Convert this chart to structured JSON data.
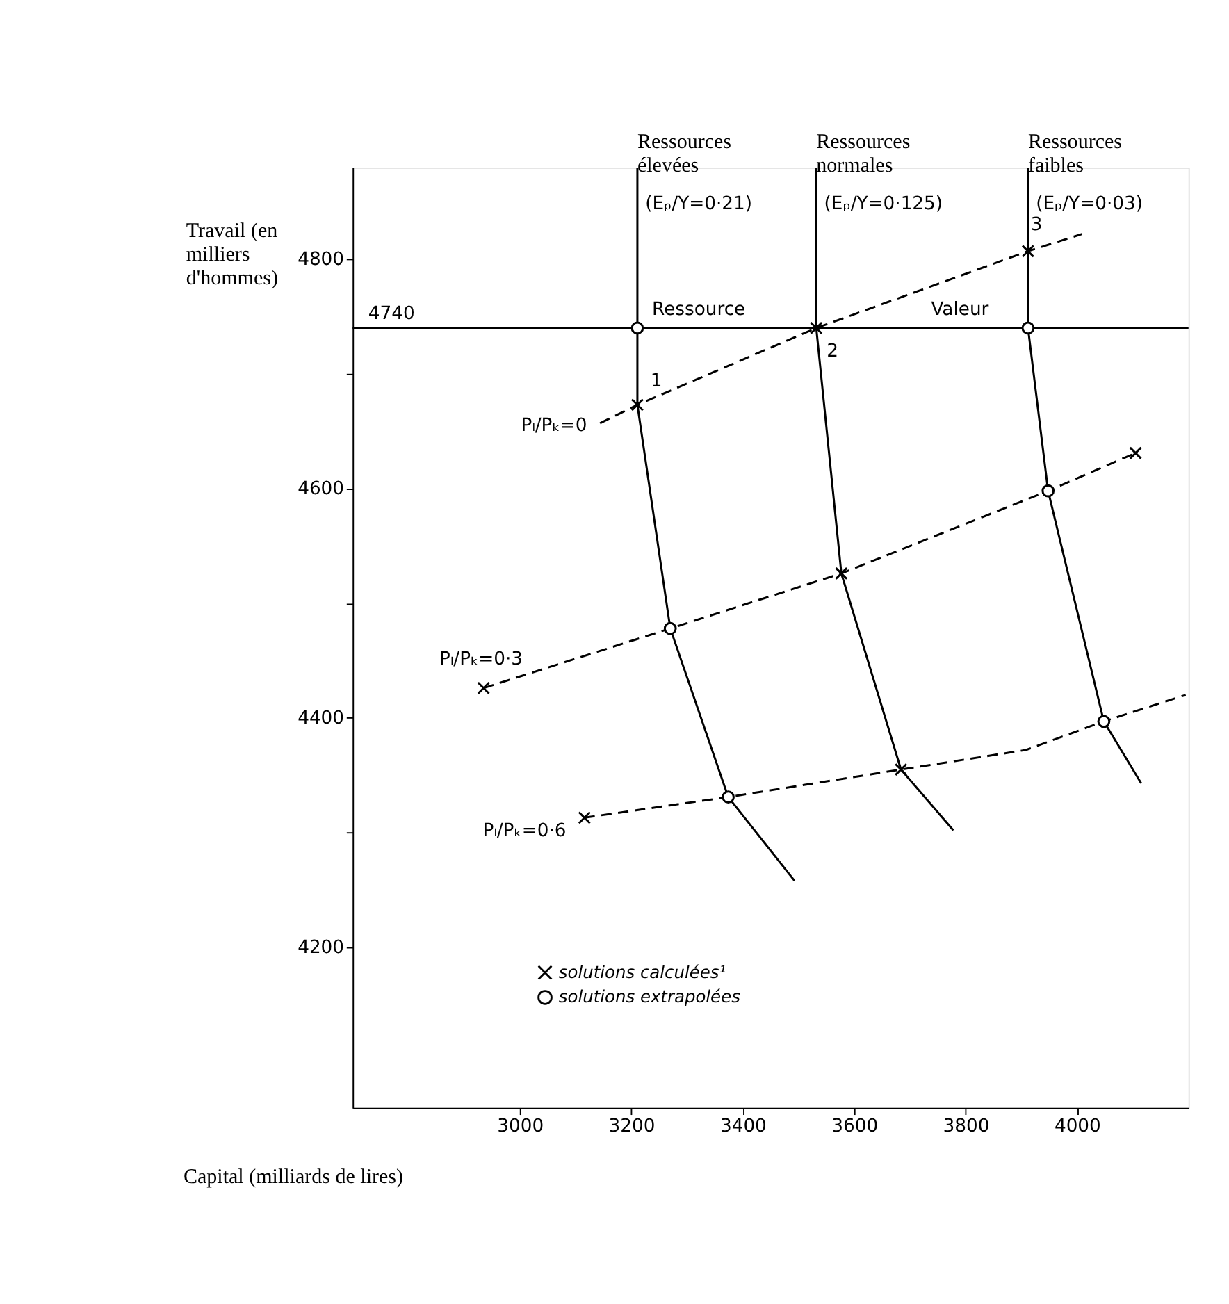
{
  "chart_data": {
    "type": "line",
    "xlabel": "Capital (milliards de lires)",
    "ylabel": "Travail (en milliers d'hommes)",
    "xlim": [
      2700,
      4200
    ],
    "ylim": [
      4060,
      4880
    ],
    "xticks": [
      3000,
      3200,
      3400,
      3600,
      3800,
      4000
    ],
    "yticks": [
      4200,
      {
        "value": 4300,
        "label": null
      },
      4400,
      {
        "value": 4500,
        "label": null
      },
      4600,
      {
        "value": 4700,
        "label": null
      },
      4800
    ],
    "grid": false,
    "legend": "bottom left",
    "ref_lines": [
      {
        "axis": "y",
        "value": 4740,
        "label": "4740"
      }
    ],
    "series": [
      {
        "line_style": "dashed",
        "color": "#000000",
        "x": [
          3144,
          3211,
          3532,
          3912,
          4009
        ],
        "values": [
          4657,
          4673,
          4740,
          4807,
          4822
        ]
      },
      {
        "line_style": "dashed",
        "color": "#000000",
        "x": [
          2935,
          3270,
          3577,
          3948,
          4105
        ],
        "values": [
          4426,
          4478,
          4526,
          4598,
          4631
        ]
      },
      {
        "line_style": "dashed",
        "color": "#000000",
        "x": [
          3116,
          3374,
          3684,
          3908,
          4048,
          4195
        ],
        "values": [
          4313,
          4331,
          4355,
          4372,
          4397,
          4420
        ]
      },
      {
        "line_style": "solid",
        "name": "Ressources élevées",
        "color": "#000000",
        "x": [
          3211,
          3211,
          3211,
          3270,
          3374,
          3493
        ],
        "values": [
          4880,
          4740,
          4673,
          4478,
          4331,
          4258
        ]
      },
      {
        "line_style": "solid",
        "name": "Ressources normales",
        "color": "#000000",
        "x": [
          3532,
          3532,
          3577,
          3684,
          3778
        ],
        "values": [
          4880,
          4740,
          4526,
          4355,
          4302
        ]
      },
      {
        "line_style": "solid",
        "name": "Ressources faibles",
        "color": "#000000",
        "x": [
          3912,
          3912,
          3912,
          3948,
          4048,
          4115
        ],
        "values": [
          4880,
          4807,
          4740,
          4598,
          4397,
          4343
        ]
      },
      {
        "type": "scatter",
        "marker": "cross",
        "name": "solutions calculées¹",
        "color": "#000000",
        "x": [
          3211,
          3532,
          3912,
          4105,
          3577,
          2935,
          3116,
          3684
        ],
        "values": [
          4673,
          4740,
          4807,
          4631,
          4526,
          4426,
          4313,
          4355
        ]
      },
      {
        "type": "scatter",
        "marker": "circle",
        "name": "solutions extrapolées",
        "color": "#000000",
        "x": [
          3211,
          3912,
          3948,
          3270,
          3374,
          4048
        ],
        "values": [
          4740,
          4740,
          4598,
          4478,
          4331,
          4397
        ]
      }
    ],
    "annotations": [
      "(Eₚ/Y=0·21)",
      "(Eₚ/Y=0·125)",
      "(Eₚ/Y=0·03)",
      "Pₗ/Pₖ=0",
      "Pₗ/Pₖ=0·3",
      "Pₗ/Pₖ=0·6",
      "Ressource",
      "Valeur",
      "1",
      "2",
      "3"
    ]
  }
}
